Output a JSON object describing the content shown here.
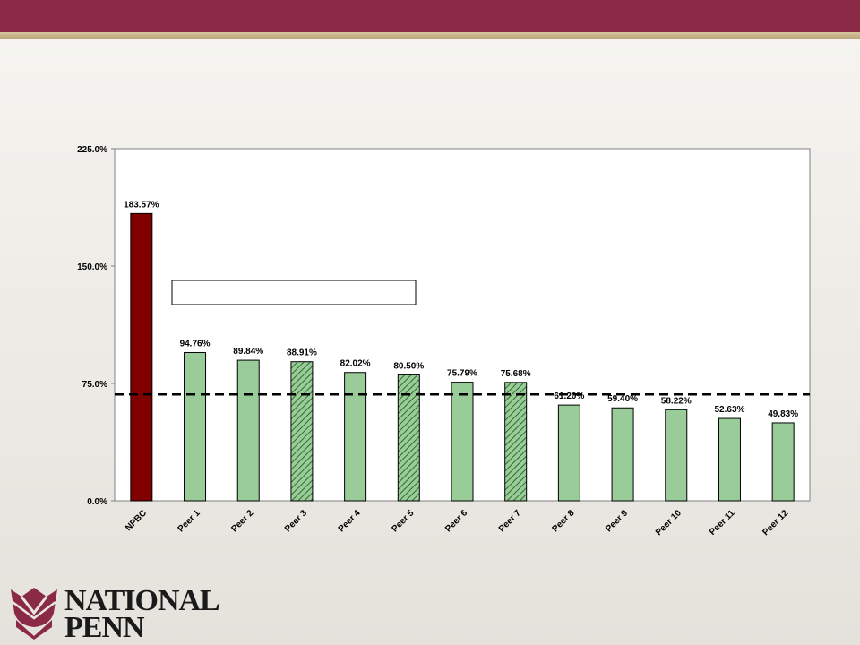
{
  "chart_data": {
    "type": "bar",
    "categories": [
      "NPBC",
      "Peer 1",
      "Peer 2",
      "Peer 3",
      "Peer 4",
      "Peer 5",
      "Peer 6",
      "Peer 7",
      "Peer 8",
      "Peer 9",
      "Peer 10",
      "Peer 11",
      "Peer 12"
    ],
    "values": [
      183.57,
      94.76,
      89.84,
      88.91,
      82.02,
      80.5,
      75.79,
      75.68,
      61.2,
      59.4,
      58.22,
      52.63,
      49.83
    ],
    "data_labels": [
      "183.57%",
      "94.76%",
      "89.84%",
      "88.91%",
      "82.02%",
      "80.50%",
      "75.79%",
      "75.68%",
      "61.20%",
      "59.40%",
      "58.22%",
      "52.63%",
      "49.83%"
    ],
    "bar_styles": [
      "highlight",
      "solid",
      "solid",
      "hatched",
      "solid",
      "hatched",
      "solid",
      "hatched",
      "solid",
      "solid",
      "solid",
      "solid",
      "solid"
    ],
    "ylim": [
      0,
      225
    ],
    "yticks": [
      0,
      75,
      150,
      225
    ],
    "ytick_labels": [
      "0.0%",
      "75.0%",
      "150.0%",
      "225.0%"
    ],
    "reference_line": 68,
    "legend_box_label": "",
    "grid": false,
    "colors": {
      "highlight": "#800000",
      "peer": "#99cc99",
      "hatch": "#2f6b2f",
      "plot_border": "#808080",
      "reference_line": "#000000"
    }
  },
  "logo": {
    "line1": "NATIONAL",
    "line2": "PENN",
    "icon": "tulip-flower-icon",
    "colors": {
      "icon": "#8a2a46"
    }
  }
}
